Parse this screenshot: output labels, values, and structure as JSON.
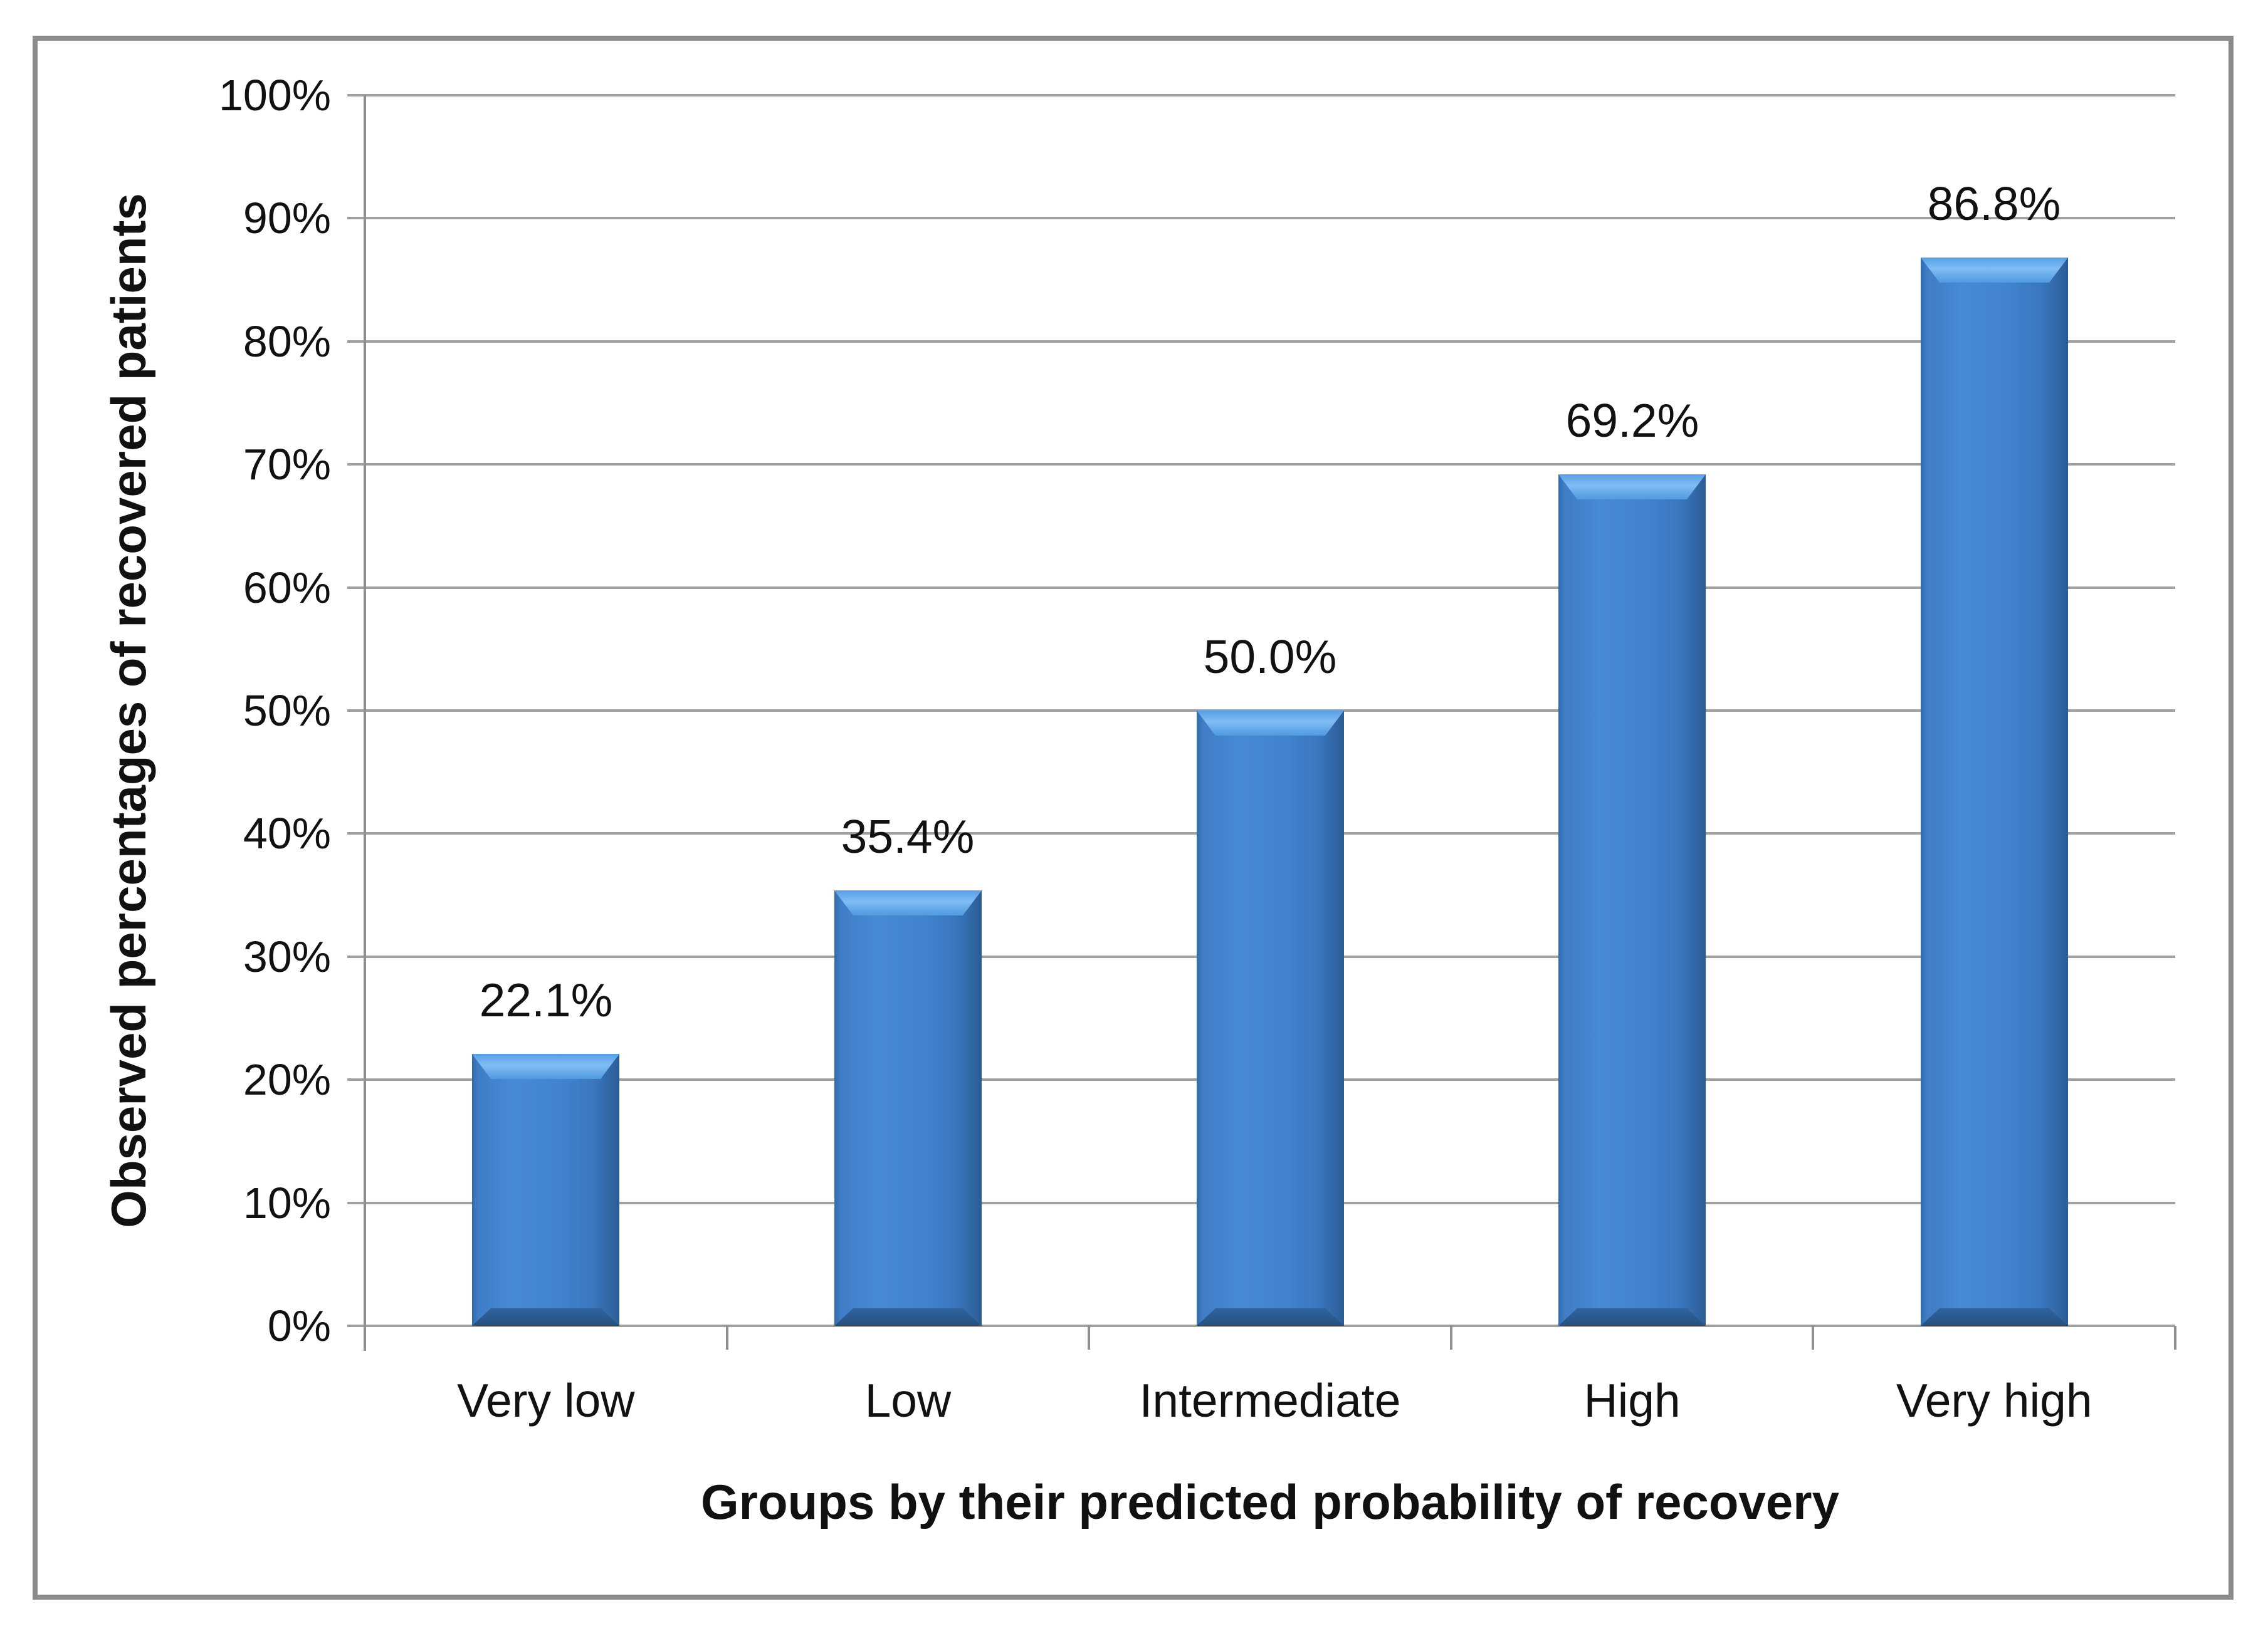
{
  "figure": {
    "background": "#ffffff",
    "frame_border_color": "#8b8b8b"
  },
  "chart_data": {
    "type": "bar",
    "title": "",
    "categories": [
      "Very low",
      "Low",
      "Intermediate",
      "High",
      "Very high"
    ],
    "values": [
      22.1,
      35.4,
      50.0,
      69.2,
      86.8
    ],
    "value_labels": [
      "22.1%",
      "35.4%",
      "50.0%",
      "69.2%",
      "86.8%"
    ],
    "xlabel": "Groups by their predicted probability of recovery",
    "ylabel": "Observed percentages of recovered patients",
    "ylim": [
      0,
      100
    ],
    "ytick_step": 10,
    "ytick_labels": [
      "0%",
      "10%",
      "20%",
      "30%",
      "40%",
      "50%",
      "60%",
      "70%",
      "80%",
      "90%",
      "100%"
    ],
    "grid": true,
    "legend_position": "none",
    "bar_color": "#3f7dc5",
    "bar_edge_dark_color": "#2b5c95",
    "bar_highlight_color": "#7fbcf5",
    "gridline_color": "#a0a0a0",
    "axis_color": "#8f8f8f",
    "text_color": "#111111"
  }
}
